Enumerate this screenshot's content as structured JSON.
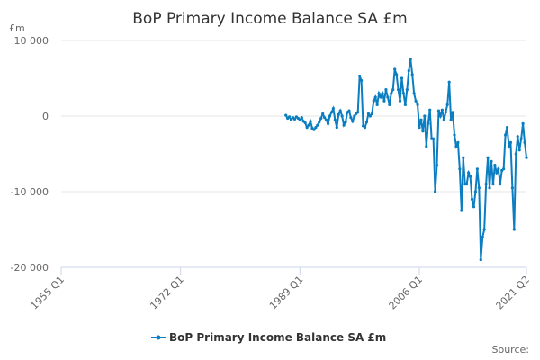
{
  "chart_data": {
    "type": "line",
    "title": "BoP Primary Income Balance SA £m",
    "y_label": "£m",
    "source": "Source:",
    "xlim": [
      1955,
      2021.25
    ],
    "xticks": [
      {
        "value": 1955,
        "label": "1955 Q1"
      },
      {
        "value": 1972,
        "label": "1972 Q1"
      },
      {
        "value": 1989,
        "label": "1989 Q1"
      },
      {
        "value": 2006,
        "label": "2006 Q1"
      },
      {
        "value": 2021.25,
        "label": "2021 Q2"
      }
    ],
    "ylim": [
      -20000,
      10000
    ],
    "yticks": [
      {
        "value": -20000,
        "label": "-20 000"
      },
      {
        "value": -10000,
        "label": "-10 000"
      },
      0,
      {
        "value": 10000,
        "label": "10 000"
      }
    ],
    "grid": true,
    "x": [
      1987,
      1987.25,
      1987.5,
      1987.75,
      1988,
      1988.25,
      1988.5,
      1988.75,
      1989,
      1989.25,
      1989.5,
      1989.75,
      1990,
      1990.25,
      1990.5,
      1990.75,
      1991,
      1991.25,
      1991.5,
      1991.75,
      1992,
      1992.25,
      1992.5,
      1992.75,
      1993,
      1993.25,
      1993.5,
      1993.75,
      1994,
      1994.25,
      1994.5,
      1994.75,
      1995,
      1995.25,
      1995.5,
      1995.75,
      1996,
      1996.25,
      1996.5,
      1996.75,
      1997,
      1997.25,
      1997.5,
      1997.75,
      1998,
      1998.25,
      1998.5,
      1998.75,
      1999,
      1999.25,
      1999.5,
      1999.75,
      2000,
      2000.25,
      2000.5,
      2000.75,
      2001,
      2001.25,
      2001.5,
      2001.75,
      2002,
      2002.25,
      2002.5,
      2002.75,
      2003,
      2003.25,
      2003.5,
      2003.75,
      2004,
      2004.25,
      2004.5,
      2004.75,
      2005,
      2005.25,
      2005.5,
      2005.75,
      2006,
      2006.25,
      2006.5,
      2006.75,
      2007,
      2007.25,
      2007.5,
      2007.75,
      2008,
      2008.25,
      2008.5,
      2008.75,
      2009,
      2009.25,
      2009.5,
      2009.75,
      2010,
      2010.25,
      2010.5,
      2010.75,
      2011,
      2011.25,
      2011.5,
      2011.75,
      2012,
      2012.25,
      2012.5,
      2012.75,
      2013,
      2013.25,
      2013.5,
      2013.75,
      2014,
      2014.25,
      2014.5,
      2014.75,
      2015,
      2015.25,
      2015.5,
      2015.75,
      2016,
      2016.25,
      2016.5,
      2016.75,
      2017,
      2017.25,
      2017.5,
      2017.75,
      2018,
      2018.25,
      2018.5,
      2018.75,
      2019,
      2019.25,
      2019.5,
      2019.75,
      2020,
      2020.25,
      2020.5,
      2020.75,
      2021,
      2021.25
    ],
    "series": [
      {
        "name": "BoP Primary Income Balance SA £m",
        "color": "#0b7dc1",
        "values": [
          100,
          -300,
          -100,
          -500,
          -200,
          -400,
          -100,
          -300,
          -500,
          -200,
          -700,
          -900,
          -1500,
          -1200,
          -700,
          -1600,
          -1800,
          -1500,
          -1200,
          -800,
          -300,
          300,
          -200,
          -500,
          -1000,
          0,
          500,
          1000,
          -500,
          -1500,
          200,
          700,
          0,
          -1200,
          -800,
          500,
          700,
          -200,
          -700,
          0,
          300,
          500,
          5300,
          4700,
          -1300,
          -1500,
          -800,
          300,
          0,
          300,
          2000,
          2500,
          1500,
          3000,
          2500,
          3000,
          2000,
          3500,
          2500,
          1500,
          3000,
          3500,
          6200,
          5500,
          3500,
          2000,
          5000,
          3000,
          1500,
          3500,
          6000,
          7500,
          5500,
          3000,
          2000,
          1500,
          -1500,
          -500,
          -2000,
          0,
          -4000,
          -1000,
          800,
          -3000,
          -3000,
          -10000,
          -6500,
          700,
          0,
          800,
          -500,
          500,
          1500,
          4500,
          -500,
          500,
          -2500,
          -4000,
          -3500,
          -7000,
          -12500,
          -5500,
          -9000,
          -9000,
          -7500,
          -8000,
          -11000,
          -12000,
          -10000,
          -7000,
          -9500,
          -19000,
          -16000,
          -15000,
          -9000,
          -5500,
          -9500,
          -6000,
          -9000,
          -6500,
          -7500,
          -7000,
          -9000,
          -7200,
          -7000,
          -2500,
          -1500,
          -4000,
          -3500,
          -9500,
          -15000,
          -5000,
          -2700,
          -4500,
          -3000,
          -1000,
          -3500,
          -5500
        ]
      }
    ]
  }
}
